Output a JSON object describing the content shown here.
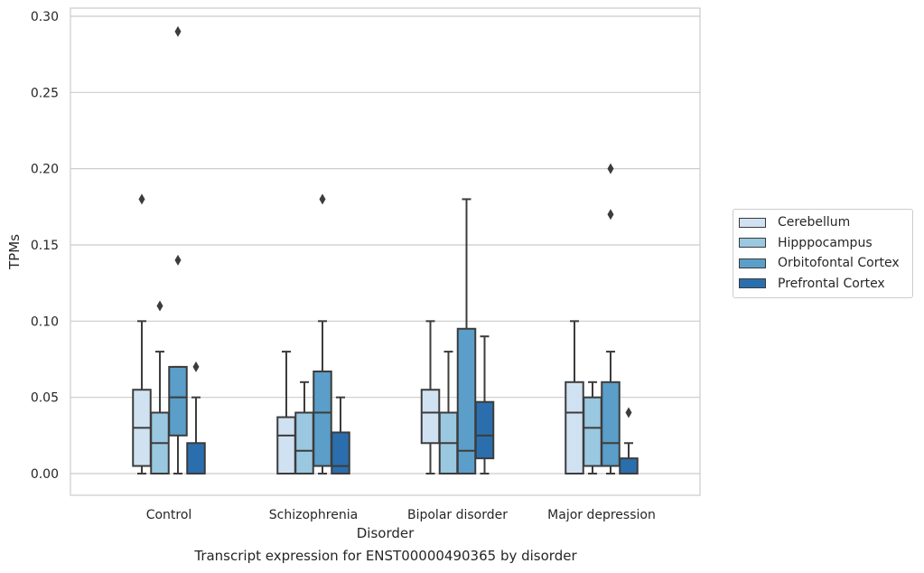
{
  "caption": "Transcript expression for ENST00000490365 by disorder",
  "chart_data": {
    "type": "box",
    "xlabel": "Disorder",
    "ylabel": "TPMs",
    "ylim": [
      -0.014,
      0.305
    ],
    "yticks": [
      "0.00",
      "0.05",
      "0.10",
      "0.15",
      "0.20",
      "0.25",
      "0.30"
    ],
    "grid": "horizontal",
    "legend_position": "right",
    "categories": [
      "Control",
      "Schizophrenia",
      "Bipolar disorder",
      "Major depression"
    ],
    "series": [
      {
        "name": "Cerebellum",
        "color": "#d0e2f2",
        "boxes": [
          {
            "whisker_low": 0.0,
            "q1": 0.005,
            "median": 0.03,
            "q3": 0.055,
            "whisker_high": 0.1,
            "outliers": [
              0.18
            ]
          },
          {
            "whisker_low": 0.0,
            "q1": 0.0,
            "median": 0.025,
            "q3": 0.037,
            "whisker_high": 0.08,
            "outliers": []
          },
          {
            "whisker_low": 0.0,
            "q1": 0.02,
            "median": 0.04,
            "q3": 0.055,
            "whisker_high": 0.1,
            "outliers": []
          },
          {
            "whisker_low": 0.0,
            "q1": 0.0,
            "median": 0.04,
            "q3": 0.06,
            "whisker_high": 0.1,
            "outliers": []
          }
        ]
      },
      {
        "name": "Hipppocampus",
        "color": "#9ac8e0",
        "boxes": [
          {
            "whisker_low": 0.0,
            "q1": 0.0,
            "median": 0.02,
            "q3": 0.04,
            "whisker_high": 0.08,
            "outliers": [
              0.11
            ]
          },
          {
            "whisker_low": 0.0,
            "q1": 0.0,
            "median": 0.015,
            "q3": 0.04,
            "whisker_high": 0.06,
            "outliers": []
          },
          {
            "whisker_low": 0.0,
            "q1": 0.0,
            "median": 0.02,
            "q3": 0.04,
            "whisker_high": 0.08,
            "outliers": []
          },
          {
            "whisker_low": 0.0,
            "q1": 0.005,
            "median": 0.03,
            "q3": 0.05,
            "whisker_high": 0.06,
            "outliers": []
          }
        ]
      },
      {
        "name": "Orbitofontal Cortex",
        "color": "#5a9ec9",
        "boxes": [
          {
            "whisker_low": 0.0,
            "q1": 0.025,
            "median": 0.05,
            "q3": 0.07,
            "whisker_high": 0.07,
            "outliers": [
              0.14,
              0.29
            ]
          },
          {
            "whisker_low": 0.0,
            "q1": 0.005,
            "median": 0.04,
            "q3": 0.067,
            "whisker_high": 0.1,
            "outliers": [
              0.18
            ]
          },
          {
            "whisker_low": 0.0,
            "q1": 0.0,
            "median": 0.015,
            "q3": 0.095,
            "whisker_high": 0.18,
            "outliers": []
          },
          {
            "whisker_low": 0.0,
            "q1": 0.005,
            "median": 0.02,
            "q3": 0.06,
            "whisker_high": 0.08,
            "outliers": [
              0.17,
              0.2
            ]
          }
        ]
      },
      {
        "name": "Prefrontal Cortex",
        "color": "#2b6ead",
        "boxes": [
          {
            "whisker_low": 0.0,
            "q1": 0.0,
            "median": 0.0,
            "q3": 0.02,
            "whisker_high": 0.05,
            "outliers": [
              0.07
            ]
          },
          {
            "whisker_low": 0.0,
            "q1": 0.0,
            "median": 0.005,
            "q3": 0.027,
            "whisker_high": 0.05,
            "outliers": []
          },
          {
            "whisker_low": 0.0,
            "q1": 0.01,
            "median": 0.025,
            "q3": 0.047,
            "whisker_high": 0.09,
            "outliers": []
          },
          {
            "whisker_low": 0.0,
            "q1": 0.0,
            "median": 0.0,
            "q3": 0.01,
            "whisker_high": 0.02,
            "outliers": [
              0.04
            ]
          }
        ]
      }
    ]
  }
}
